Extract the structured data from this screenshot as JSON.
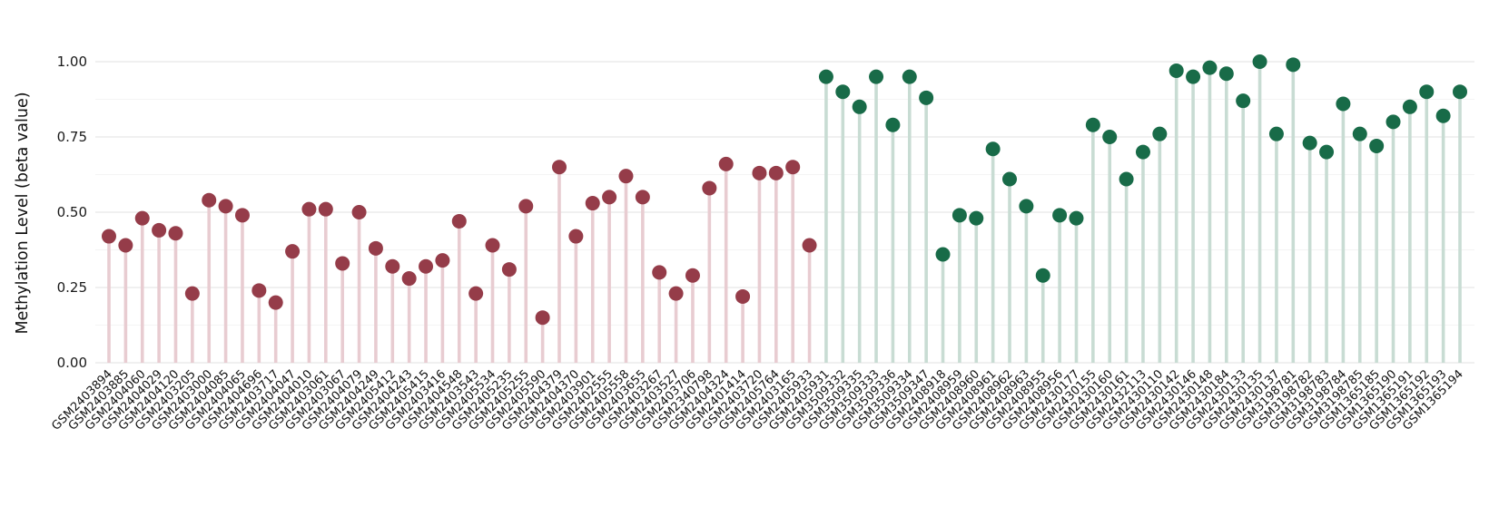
{
  "chart_data": {
    "type": "scatter",
    "variant": "lollipop-stem",
    "title": "",
    "xlabel": "",
    "ylabel": "Methylation Level (beta value)",
    "ylim": [
      0,
      1
    ],
    "yticks": [
      0,
      0.25,
      0.5,
      0.75,
      1.0
    ],
    "ytick_labels": [
      "0.00",
      "0.25",
      "0.50",
      "0.75",
      "1.00"
    ],
    "grid": "horizontal-major-and-minor",
    "legend": "none",
    "groups": [
      {
        "name": "group-low-methylation",
        "dot_color": "#953c49",
        "stem_color": "#e8ccd1"
      },
      {
        "name": "group-high-methylation",
        "dot_color": "#186b48",
        "stem_color": "#c8dcd3"
      }
    ],
    "samples": [
      {
        "id": "GSM2403894",
        "value": 0.42,
        "group": 0
      },
      {
        "id": "GSM2403885",
        "value": 0.39,
        "group": 0
      },
      {
        "id": "GSM2404060",
        "value": 0.48,
        "group": 0
      },
      {
        "id": "GSM2404029",
        "value": 0.44,
        "group": 0
      },
      {
        "id": "GSM2404120",
        "value": 0.43,
        "group": 0
      },
      {
        "id": "GSM2403205",
        "value": 0.23,
        "group": 0
      },
      {
        "id": "GSM2403000",
        "value": 0.54,
        "group": 0
      },
      {
        "id": "GSM2404085",
        "value": 0.52,
        "group": 0
      },
      {
        "id": "GSM2404065",
        "value": 0.49,
        "group": 0
      },
      {
        "id": "GSM2404696",
        "value": 0.24,
        "group": 0
      },
      {
        "id": "GSM2403717",
        "value": 0.2,
        "group": 0
      },
      {
        "id": "GSM2404047",
        "value": 0.37,
        "group": 0
      },
      {
        "id": "GSM2404010",
        "value": 0.51,
        "group": 0
      },
      {
        "id": "GSM2403061",
        "value": 0.51,
        "group": 0
      },
      {
        "id": "GSM2403067",
        "value": 0.33,
        "group": 0
      },
      {
        "id": "GSM2404079",
        "value": 0.5,
        "group": 0
      },
      {
        "id": "GSM2404249",
        "value": 0.38,
        "group": 0
      },
      {
        "id": "GSM2405412",
        "value": 0.32,
        "group": 0
      },
      {
        "id": "GSM2404243",
        "value": 0.28,
        "group": 0
      },
      {
        "id": "GSM2405415",
        "value": 0.32,
        "group": 0
      },
      {
        "id": "GSM2403416",
        "value": 0.34,
        "group": 0
      },
      {
        "id": "GSM2404548",
        "value": 0.47,
        "group": 0
      },
      {
        "id": "GSM2403543",
        "value": 0.23,
        "group": 0
      },
      {
        "id": "GSM2405534",
        "value": 0.39,
        "group": 0
      },
      {
        "id": "GSM2405235",
        "value": 0.31,
        "group": 0
      },
      {
        "id": "GSM2405255",
        "value": 0.52,
        "group": 0
      },
      {
        "id": "GSM2405590",
        "value": 0.15,
        "group": 0
      },
      {
        "id": "GSM2404379",
        "value": 0.65,
        "group": 0
      },
      {
        "id": "GSM2404370",
        "value": 0.42,
        "group": 0
      },
      {
        "id": "GSM2403901",
        "value": 0.53,
        "group": 0
      },
      {
        "id": "GSM2402555",
        "value": 0.55,
        "group": 0
      },
      {
        "id": "GSM2405558",
        "value": 0.62,
        "group": 0
      },
      {
        "id": "GSM2403655",
        "value": 0.55,
        "group": 0
      },
      {
        "id": "GSM2403267",
        "value": 0.3,
        "group": 0
      },
      {
        "id": "GSM2403527",
        "value": 0.23,
        "group": 0
      },
      {
        "id": "GSM2403706",
        "value": 0.29,
        "group": 0
      },
      {
        "id": "GSM2340798",
        "value": 0.58,
        "group": 0
      },
      {
        "id": "GSM2404324",
        "value": 0.66,
        "group": 0
      },
      {
        "id": "GSM2401414",
        "value": 0.22,
        "group": 0
      },
      {
        "id": "GSM2403720",
        "value": 0.63,
        "group": 0
      },
      {
        "id": "GSM2405764",
        "value": 0.63,
        "group": 0
      },
      {
        "id": "GSM2403165",
        "value": 0.65,
        "group": 0
      },
      {
        "id": "GSM2405933",
        "value": 0.39,
        "group": 0
      },
      {
        "id": "GSM2405931",
        "value": 0.95,
        "group": 1
      },
      {
        "id": "GSM3509332",
        "value": 0.9,
        "group": 1
      },
      {
        "id": "GSM3509335",
        "value": 0.85,
        "group": 1
      },
      {
        "id": "GSM3509333",
        "value": 0.95,
        "group": 1
      },
      {
        "id": "GSM3509336",
        "value": 0.79,
        "group": 1
      },
      {
        "id": "GSM3509334",
        "value": 0.95,
        "group": 1
      },
      {
        "id": "GSM3509347",
        "value": 0.88,
        "group": 1
      },
      {
        "id": "GSM2408918",
        "value": 0.36,
        "group": 1
      },
      {
        "id": "GSM2408959",
        "value": 0.49,
        "group": 1
      },
      {
        "id": "GSM2408960",
        "value": 0.48,
        "group": 1
      },
      {
        "id": "GSM2408961",
        "value": 0.71,
        "group": 1
      },
      {
        "id": "GSM2408962",
        "value": 0.61,
        "group": 1
      },
      {
        "id": "GSM2408963",
        "value": 0.52,
        "group": 1
      },
      {
        "id": "GSM2408955",
        "value": 0.29,
        "group": 1
      },
      {
        "id": "GSM2408956",
        "value": 0.49,
        "group": 1
      },
      {
        "id": "GSM2430177",
        "value": 0.48,
        "group": 1
      },
      {
        "id": "GSM2430155",
        "value": 0.79,
        "group": 1
      },
      {
        "id": "GSM2430160",
        "value": 0.75,
        "group": 1
      },
      {
        "id": "GSM2430161",
        "value": 0.61,
        "group": 1
      },
      {
        "id": "GSM2432113",
        "value": 0.7,
        "group": 1
      },
      {
        "id": "GSM2430110",
        "value": 0.76,
        "group": 1
      },
      {
        "id": "GSM2430142",
        "value": 0.97,
        "group": 1
      },
      {
        "id": "GSM2430146",
        "value": 0.95,
        "group": 1
      },
      {
        "id": "GSM2430148",
        "value": 0.98,
        "group": 1
      },
      {
        "id": "GSM2430184",
        "value": 0.96,
        "group": 1
      },
      {
        "id": "GSM2430133",
        "value": 0.87,
        "group": 1
      },
      {
        "id": "GSM2430135",
        "value": 1.0,
        "group": 1
      },
      {
        "id": "GSM2430137",
        "value": 0.76,
        "group": 1
      },
      {
        "id": "GSM3198781",
        "value": 0.99,
        "group": 1
      },
      {
        "id": "GSM3198782",
        "value": 0.73,
        "group": 1
      },
      {
        "id": "GSM3198783",
        "value": 0.7,
        "group": 1
      },
      {
        "id": "GSM3198784",
        "value": 0.86,
        "group": 1
      },
      {
        "id": "GSM3198785",
        "value": 0.76,
        "group": 1
      },
      {
        "id": "GSM1365185",
        "value": 0.72,
        "group": 1
      },
      {
        "id": "GSM1365190",
        "value": 0.8,
        "group": 1
      },
      {
        "id": "GSM1365191",
        "value": 0.85,
        "group": 1
      },
      {
        "id": "GSM1365192",
        "value": 0.9,
        "group": 1
      },
      {
        "id": "GSM1365193",
        "value": 0.82,
        "group": 1
      },
      {
        "id": "GSM1365194",
        "value": 0.9,
        "group": 1
      }
    ]
  }
}
